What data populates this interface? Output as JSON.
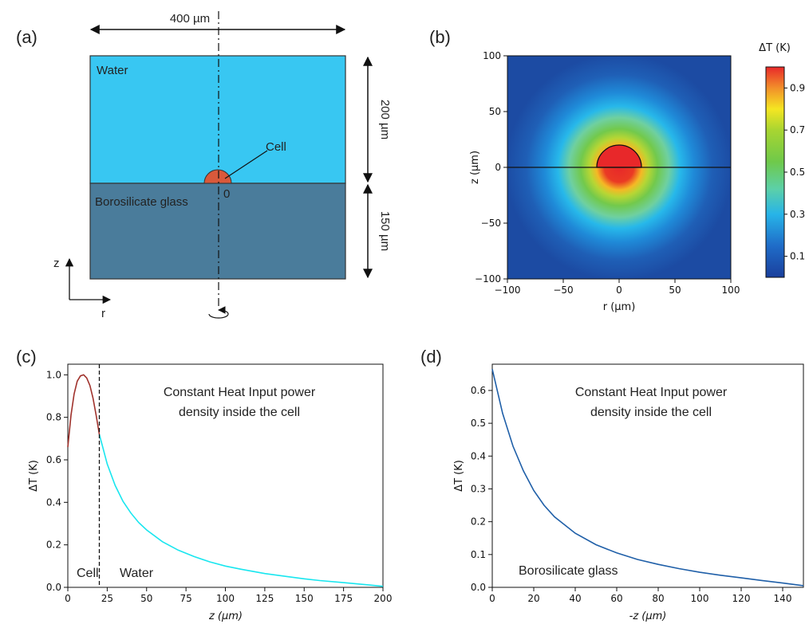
{
  "panel_labels": {
    "a": "(a)",
    "b": "(b)",
    "c": "(c)",
    "d": "(d)"
  },
  "panel_a": {
    "width_label": "400 µm",
    "water_label": "Water",
    "glass_label": "Borosilicate glass",
    "cell_label": "Cell",
    "origin_label": "0",
    "water_height_label": "200 µm",
    "glass_height_label": "150 µm",
    "axis_z_label": "z",
    "axis_r_label": "r",
    "colors": {
      "water": "#38c7f2",
      "glass": "#4a7c9b",
      "cell": "#d9593b"
    }
  },
  "chart_data": [
    {
      "id": "b",
      "type": "heatmap",
      "title": "",
      "xlabel": "r (µm)",
      "ylabel": "z (µm)",
      "xlim": [
        -100,
        100
      ],
      "ylim": [
        -100,
        100
      ],
      "xticks": [
        "−100",
        "−50",
        "0",
        "50",
        "100"
      ],
      "xtick_values": [
        -100,
        -50,
        0,
        50,
        100
      ],
      "yticks": [
        "100",
        "50",
        "0",
        "−50",
        "−100"
      ],
      "ytick_values": [
        100,
        50,
        0,
        -50,
        -100
      ],
      "colorbar_label": "ΔT (K)",
      "colorbar_ticks": [
        "0.9",
        "0.7",
        "0.5",
        "0.3",
        "0.1"
      ],
      "colorbar_tick_values": [
        0.9,
        0.7,
        0.5,
        0.3,
        0.1
      ],
      "colorbar_range": [
        0,
        1
      ],
      "field": {
        "peak_value": 1.0,
        "cell_radius": 20,
        "cell_center": [
          0,
          0
        ]
      },
      "interface_z": 0,
      "colormap": "jet"
    },
    {
      "id": "c",
      "type": "line",
      "title": "",
      "xlabel": "z (μm)",
      "ylabel": "ΔT (K)",
      "xlim": [
        0,
        200
      ],
      "ylim": [
        0,
        1.05
      ],
      "xticks": [
        "0",
        "25",
        "50",
        "75",
        "100",
        "125",
        "150",
        "175",
        "200"
      ],
      "xtick_values": [
        0,
        25,
        50,
        75,
        100,
        125,
        150,
        175,
        200
      ],
      "yticks": [
        "0.0",
        "0.2",
        "0.4",
        "0.6",
        "0.8",
        "1.0"
      ],
      "ytick_values": [
        0,
        0.2,
        0.4,
        0.6,
        0.8,
        1.0
      ],
      "annotation": [
        "Constant Heat Input power",
        "density inside the cell"
      ],
      "region_labels": {
        "left": "Cell",
        "right": "Water"
      },
      "boundary_x": 20,
      "series": [
        {
          "color": "#a0322c",
          "x": [
            0,
            2,
            4,
            6,
            8,
            10,
            12,
            14,
            16,
            18,
            20
          ],
          "y": [
            0.66,
            0.81,
            0.91,
            0.97,
            0.995,
            1.0,
            0.985,
            0.95,
            0.89,
            0.81,
            0.72
          ]
        },
        {
          "color": "#19e6ef",
          "x": [
            20,
            25,
            30,
            35,
            40,
            45,
            50,
            60,
            70,
            80,
            90,
            100,
            110,
            125,
            140,
            150,
            160,
            175,
            190,
            200
          ],
          "y": [
            0.72,
            0.58,
            0.48,
            0.405,
            0.35,
            0.305,
            0.27,
            0.215,
            0.175,
            0.145,
            0.12,
            0.1,
            0.085,
            0.065,
            0.05,
            0.04,
            0.032,
            0.022,
            0.012,
            0.005
          ]
        }
      ]
    },
    {
      "id": "d",
      "type": "line",
      "title": "",
      "xlabel": "-z (μm)",
      "ylabel": "ΔT (K)",
      "xlim": [
        0,
        150
      ],
      "ylim": [
        0,
        0.68
      ],
      "xticks": [
        "0",
        "20",
        "40",
        "60",
        "80",
        "100",
        "120",
        "140"
      ],
      "xtick_values": [
        0,
        20,
        40,
        60,
        80,
        100,
        120,
        140
      ],
      "yticks": [
        "0.0",
        "0.1",
        "0.2",
        "0.3",
        "0.4",
        "0.5",
        "0.6"
      ],
      "ytick_values": [
        0,
        0.1,
        0.2,
        0.3,
        0.4,
        0.5,
        0.6
      ],
      "annotation": [
        "Constant Heat Input power",
        "density inside the cell"
      ],
      "region_labels": {
        "left": "Borosilicate glass"
      },
      "series": [
        {
          "color": "#1f5fa8",
          "x": [
            0,
            5,
            10,
            15,
            20,
            25,
            30,
            40,
            50,
            60,
            70,
            80,
            90,
            100,
            110,
            120,
            130,
            140,
            150
          ],
          "y": [
            0.665,
            0.53,
            0.43,
            0.355,
            0.295,
            0.25,
            0.215,
            0.165,
            0.13,
            0.105,
            0.085,
            0.07,
            0.057,
            0.046,
            0.037,
            0.029,
            0.021,
            0.013,
            0.005
          ]
        }
      ]
    }
  ]
}
